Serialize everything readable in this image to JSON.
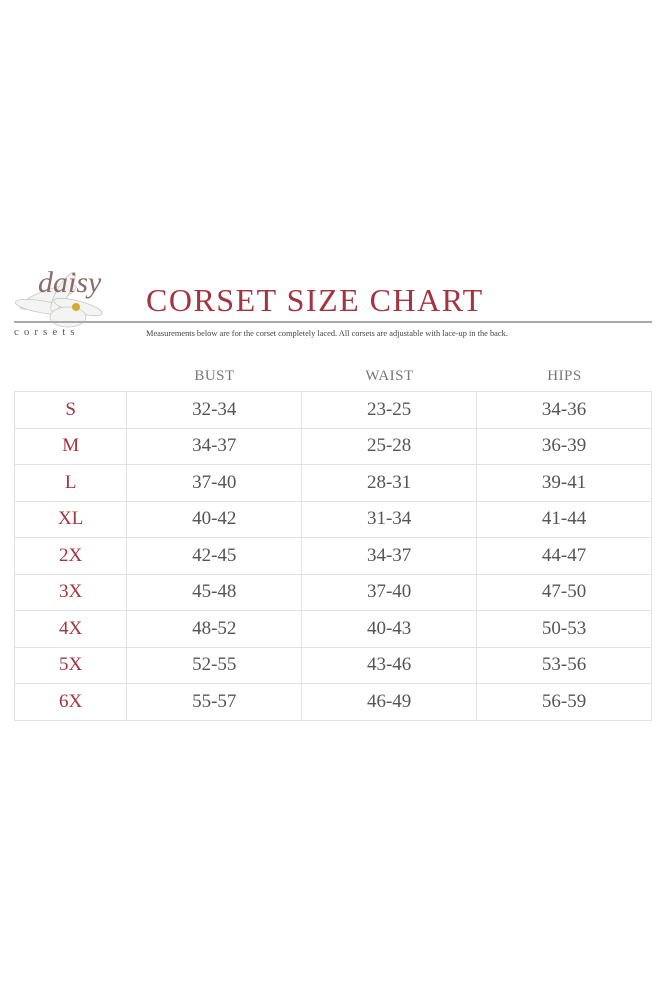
{
  "brand": {
    "logo_text": "daisy",
    "logo_subtext": "corsets",
    "accent_color": "#a33440"
  },
  "title": "CORSET SIZE CHART",
  "subtitle": "Measurements below are for the corset completely laced.  All corsets are adjustable with lace-up in the back.",
  "columns": [
    "BUST",
    "WAIST",
    "HIPS"
  ],
  "rows": [
    {
      "size": "S",
      "bust": "32-34",
      "waist": "23-25",
      "hips": "34-36"
    },
    {
      "size": "M",
      "bust": "34-37",
      "waist": "25-28",
      "hips": "36-39"
    },
    {
      "size": "L",
      "bust": "37-40",
      "waist": "28-31",
      "hips": "39-41"
    },
    {
      "size": "XL",
      "bust": "40-42",
      "waist": "31-34",
      "hips": "41-44"
    },
    {
      "size": "2X",
      "bust": "42-45",
      "waist": "34-37",
      "hips": "44-47"
    },
    {
      "size": "3X",
      "bust": "45-48",
      "waist": "37-40",
      "hips": "47-50"
    },
    {
      "size": "4X",
      "bust": "48-52",
      "waist": "40-43",
      "hips": "50-53"
    },
    {
      "size": "5X",
      "bust": "52-55",
      "waist": "43-46",
      "hips": "53-56"
    },
    {
      "size": "6X",
      "bust": "55-57",
      "waist": "46-49",
      "hips": "56-59"
    }
  ]
}
